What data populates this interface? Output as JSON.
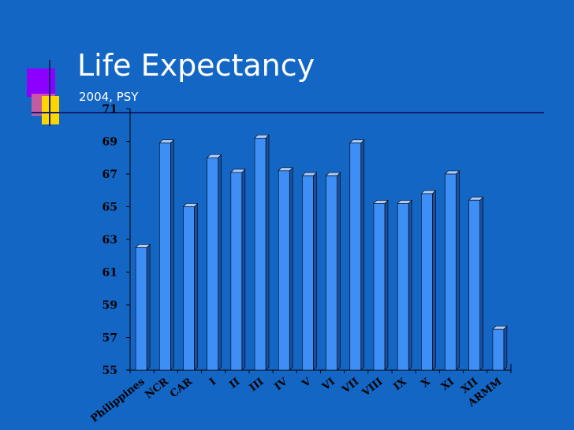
{
  "slide": {
    "title": "Life Expectancy",
    "subtitle": "2004, PSY"
  },
  "colors": {
    "background": "#1366c4",
    "bar_front": "#3d8ef5",
    "bar_top": "#a8ccff",
    "bar_side": "#1a4fa0",
    "axis_text": "#000000",
    "rule": "#0d1f6e"
  },
  "chart_data": {
    "type": "bar",
    "categories": [
      "Philippines",
      "NCR",
      "CAR",
      "I",
      "II",
      "III",
      "IV",
      "V",
      "VI",
      "VII",
      "VIII",
      "IX",
      "X",
      "XI",
      "XII",
      "ARMM"
    ],
    "values": [
      62.5,
      68.9,
      65.0,
      68.0,
      67.1,
      69.2,
      67.2,
      66.9,
      66.9,
      68.9,
      65.2,
      65.2,
      65.8,
      67.0,
      65.4,
      57.5
    ],
    "ylim": [
      55,
      71
    ],
    "yticks": [
      "55",
      "57",
      "59",
      "61",
      "63",
      "65",
      "67",
      "69",
      "71"
    ],
    "grid": false
  }
}
